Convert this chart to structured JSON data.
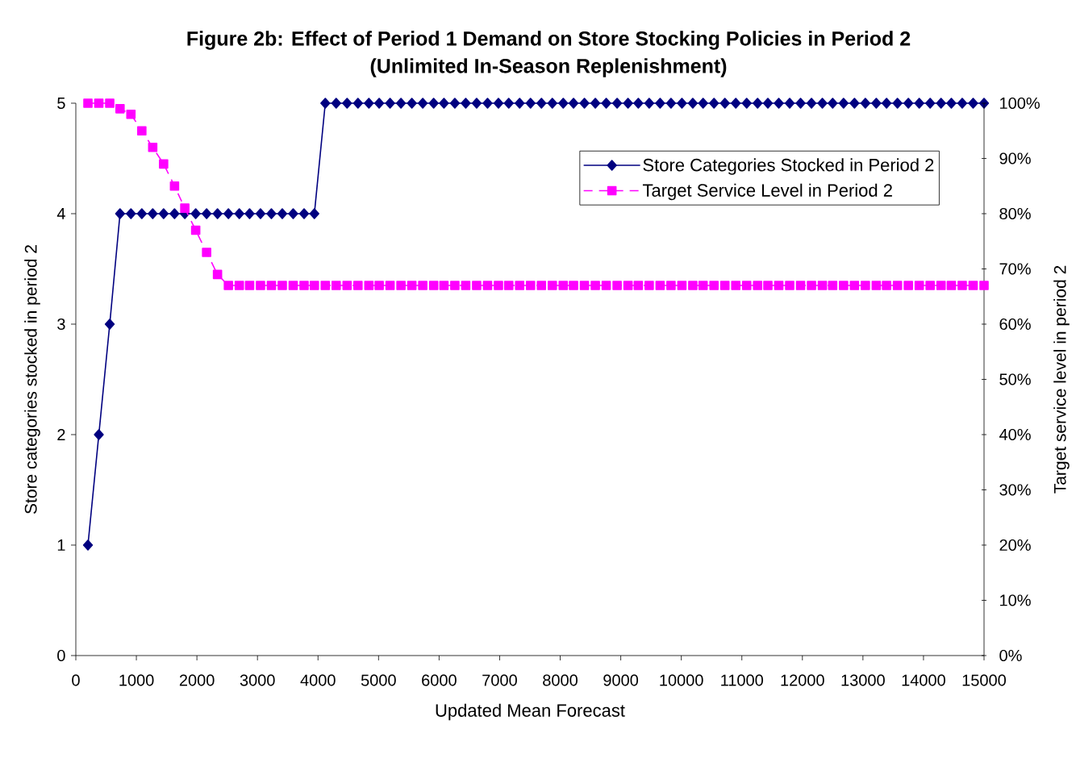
{
  "chart_data": {
    "type": "line",
    "title": "Figure 2b: Effect of Period 1 Demand on Store Stocking Policies in Period 2",
    "subtitle": "(Unlimited In-Season Replenishment)",
    "xlabel": "Updated Mean Forecast",
    "ylabel": "Store categories stocked in period 2",
    "y2label": "Target service level in period 2",
    "x": [
      200,
      380,
      560,
      730,
      910,
      1090,
      1270,
      1450,
      1630,
      1800,
      1980,
      2160,
      2340,
      2520,
      2700,
      2870,
      3050,
      3230,
      3410,
      3590,
      3770,
      3940,
      4120,
      4300,
      4480,
      4660,
      4840,
      5010,
      5190,
      5370,
      5550,
      5730,
      5910,
      6080,
      6260,
      6440,
      6620,
      6800,
      6980,
      7150,
      7330,
      7510,
      7690,
      7870,
      8050,
      8220,
      8400,
      8580,
      8760,
      8940,
      9120,
      9290,
      9470,
      9650,
      9830,
      10010,
      10190,
      10360,
      10540,
      10720,
      10900,
      11080,
      11260,
      11430,
      11610,
      11790,
      11970,
      12150,
      12330,
      12500,
      12680,
      12860,
      13040,
      13220,
      13390,
      13570,
      13750,
      13930,
      14110,
      14290,
      14460,
      14640,
      14820,
      15000
    ],
    "series": [
      {
        "name": "Store Categories Stocked in Period 2",
        "color": "#000080",
        "marker": "diamond",
        "line_style": "solid",
        "values": [
          1,
          2,
          3,
          4,
          4,
          4,
          4,
          4,
          4,
          4,
          4,
          4,
          4,
          4,
          4,
          4,
          4,
          4,
          4,
          4,
          4,
          4,
          5,
          5,
          5,
          5,
          5,
          5,
          5,
          5,
          5,
          5,
          5,
          5,
          5,
          5,
          5,
          5,
          5,
          5,
          5,
          5,
          5,
          5,
          5,
          5,
          5,
          5,
          5,
          5,
          5,
          5,
          5,
          5,
          5,
          5,
          5,
          5,
          5,
          5,
          5,
          5,
          5,
          5,
          5,
          5,
          5,
          5,
          5,
          5,
          5,
          5,
          5,
          5,
          5,
          5,
          5,
          5,
          5,
          5,
          5,
          5,
          5,
          5
        ]
      },
      {
        "name": "Target Service Level in Period 2",
        "color": "#ff00ff",
        "marker": "square",
        "line_style": "dashed",
        "axis": "y2",
        "values": [
          100,
          100,
          100,
          99,
          98,
          95,
          92,
          89,
          85,
          81,
          77,
          73,
          69,
          67,
          67,
          67,
          67,
          67,
          67,
          67,
          67,
          67,
          67,
          67,
          67,
          67,
          67,
          67,
          67,
          67,
          67,
          67,
          67,
          67,
          67,
          67,
          67,
          67,
          67,
          67,
          67,
          67,
          67,
          67,
          67,
          67,
          67,
          67,
          67,
          67,
          67,
          67,
          67,
          67,
          67,
          67,
          67,
          67,
          67,
          67,
          67,
          67,
          67,
          67,
          67,
          67,
          67,
          67,
          67,
          67,
          67,
          67,
          67,
          67,
          67,
          67,
          67,
          67,
          67,
          67,
          67,
          67,
          67,
          67
        ]
      }
    ],
    "xlim": [
      0,
      15000
    ],
    "xticks": [
      0,
      1000,
      2000,
      3000,
      4000,
      5000,
      6000,
      7000,
      8000,
      9000,
      10000,
      11000,
      12000,
      13000,
      14000,
      15000
    ],
    "ylim": [
      0,
      5
    ],
    "yticks": [
      0,
      1,
      2,
      3,
      4,
      5
    ],
    "y2lim": [
      0,
      100
    ],
    "y2ticks": [
      {
        "value": 0,
        "label": "0%"
      },
      {
        "value": 10,
        "label": "10%"
      },
      {
        "value": 20,
        "label": "20%"
      },
      {
        "value": 30,
        "label": "30%"
      },
      {
        "value": 40,
        "label": "40%"
      },
      {
        "value": 50,
        "label": "50%"
      },
      {
        "value": 60,
        "label": "60%"
      },
      {
        "value": 70,
        "label": "70%"
      },
      {
        "value": 80,
        "label": "80%"
      },
      {
        "value": 90,
        "label": "90%"
      },
      {
        "value": 100,
        "label": "100%"
      }
    ],
    "legend": "top right"
  }
}
